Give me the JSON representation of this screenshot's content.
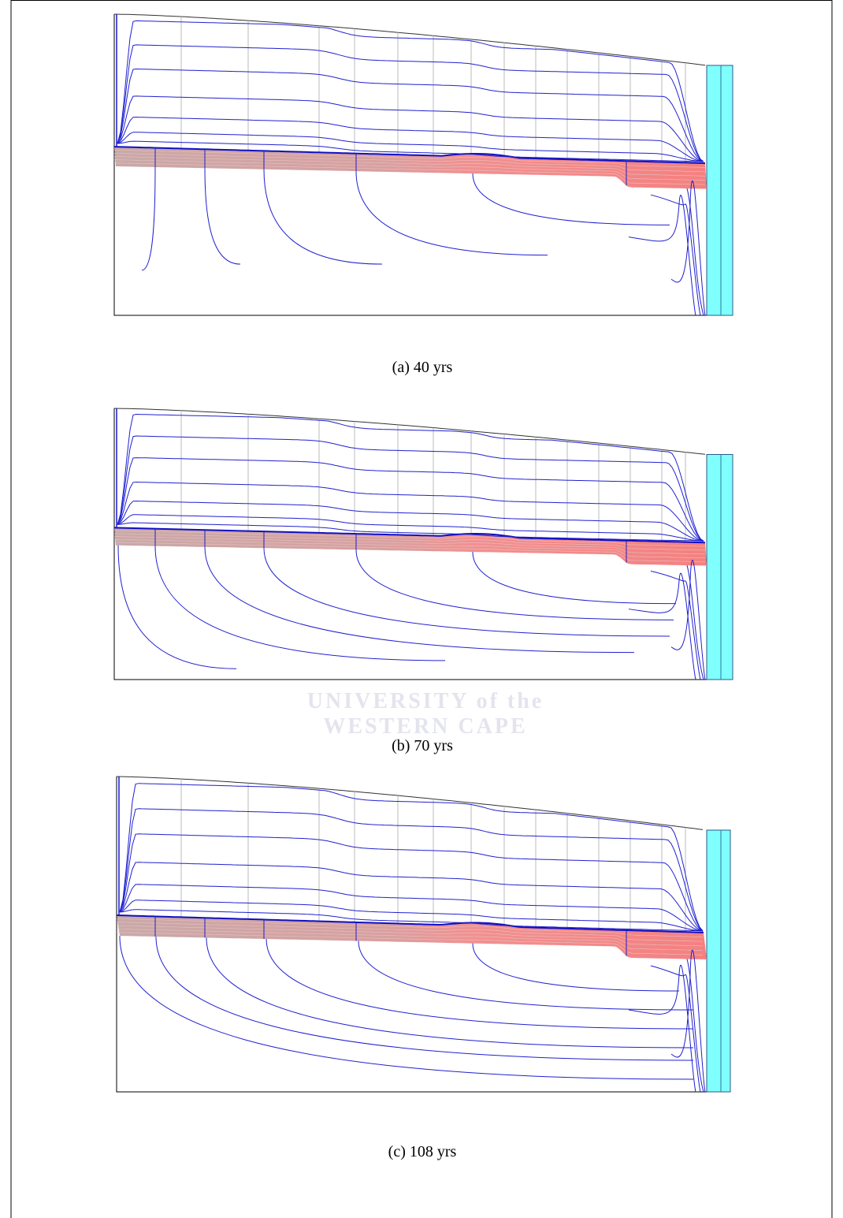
{
  "figure": {
    "panels": [
      {
        "caption": "(a) 40 yrs"
      },
      {
        "caption": "(b) 70 yrs"
      },
      {
        "caption": "(c) 108 yrs"
      }
    ],
    "watermark": [
      "UNIVERSITY of the",
      "WESTERN CAPE"
    ]
  }
}
